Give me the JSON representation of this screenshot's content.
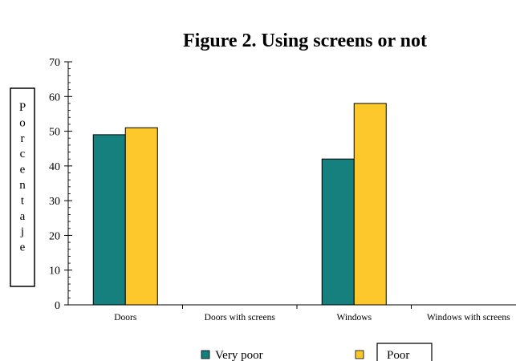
{
  "chart_data": {
    "type": "bar",
    "title": "Figure 2. Using screens or not",
    "ylabel": "Porcentaje",
    "xlabel": "",
    "categories": [
      "Doors",
      "Doors with screens",
      "Windows",
      "Windows with screens"
    ],
    "series": [
      {
        "name": "Very poor",
        "values": [
          49,
          null,
          42,
          null
        ],
        "color": "#16807e"
      },
      {
        "name": "Poor",
        "values": [
          51,
          null,
          58,
          null
        ],
        "color": "#fdc82b"
      }
    ],
    "ylim": [
      0,
      70
    ],
    "yticks": [
      0,
      10,
      20,
      30,
      40,
      50,
      60,
      70
    ],
    "grid": false,
    "legend_position": "bottom"
  }
}
